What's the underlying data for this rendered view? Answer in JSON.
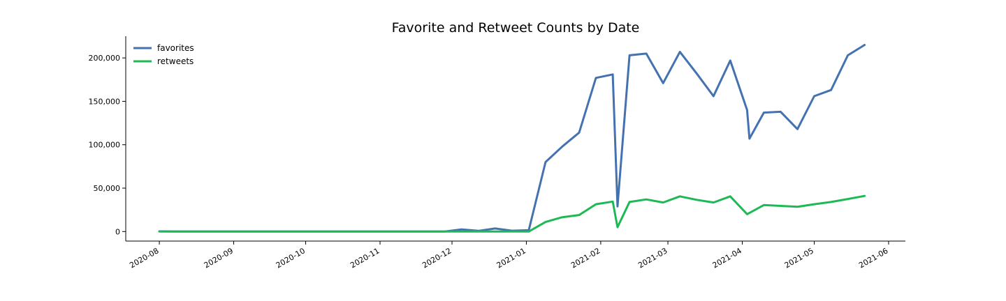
{
  "chart_data": {
    "type": "line",
    "title": "Favorite and Retweet Counts by Date",
    "xlabel": "",
    "ylabel": "",
    "x_ticks": [
      "2020-08",
      "2020-09",
      "2020-10",
      "2020-11",
      "2020-12",
      "2021-01",
      "2021-02",
      "2021-03",
      "2021-04",
      "2021-05",
      "2021-06"
    ],
    "y_ticks": [
      "0",
      "50,000",
      "100,000",
      "150,000",
      "200,000"
    ],
    "xlim": [
      "2020-07-18",
      "2021-06-08"
    ],
    "ylim": [
      -11000,
      225000
    ],
    "grid": false,
    "legend_position": "top-left",
    "series": [
      {
        "name": "favorites",
        "color": "#4472b0",
        "points": [
          [
            "2020-08-01",
            200
          ],
          [
            "2020-08-08",
            100
          ],
          [
            "2020-09-01",
            0
          ],
          [
            "2020-10-01",
            0
          ],
          [
            "2020-11-01",
            0
          ],
          [
            "2020-11-28",
            0
          ],
          [
            "2020-12-05",
            2500
          ],
          [
            "2020-12-12",
            800
          ],
          [
            "2020-12-19",
            3500
          ],
          [
            "2020-12-26",
            1000
          ],
          [
            "2021-01-02",
            1500
          ],
          [
            "2021-01-09",
            80000
          ],
          [
            "2021-01-16",
            98000
          ],
          [
            "2021-01-23",
            114000
          ],
          [
            "2021-01-30",
            177000
          ],
          [
            "2021-02-06",
            181000
          ],
          [
            "2021-02-08",
            29000
          ],
          [
            "2021-02-13",
            203000
          ],
          [
            "2021-02-20",
            205000
          ],
          [
            "2021-02-27",
            171000
          ],
          [
            "2021-03-06",
            207000
          ],
          [
            "2021-03-13",
            182000
          ],
          [
            "2021-03-20",
            156000
          ],
          [
            "2021-03-27",
            197000
          ],
          [
            "2021-04-03",
            140000
          ],
          [
            "2021-04-04",
            107000
          ],
          [
            "2021-04-10",
            137000
          ],
          [
            "2021-04-17",
            138000
          ],
          [
            "2021-04-24",
            118000
          ],
          [
            "2021-05-01",
            156000
          ],
          [
            "2021-05-08",
            163000
          ],
          [
            "2021-05-15",
            203000
          ],
          [
            "2021-05-22",
            215000
          ]
        ]
      },
      {
        "name": "retweets",
        "color": "#1db954",
        "points": [
          [
            "2020-08-01",
            0
          ],
          [
            "2020-09-01",
            0
          ],
          [
            "2020-10-01",
            0
          ],
          [
            "2020-11-01",
            0
          ],
          [
            "2020-11-28",
            0
          ],
          [
            "2020-12-26",
            0
          ],
          [
            "2021-01-02",
            0
          ],
          [
            "2021-01-09",
            11000
          ],
          [
            "2021-01-16",
            16500
          ],
          [
            "2021-01-23",
            19000
          ],
          [
            "2021-01-30",
            31500
          ],
          [
            "2021-02-06",
            34500
          ],
          [
            "2021-02-08",
            5000
          ],
          [
            "2021-02-13",
            34000
          ],
          [
            "2021-02-20",
            37000
          ],
          [
            "2021-02-27",
            33500
          ],
          [
            "2021-03-06",
            40500
          ],
          [
            "2021-03-13",
            36500
          ],
          [
            "2021-03-20",
            33500
          ],
          [
            "2021-03-27",
            40500
          ],
          [
            "2021-04-03",
            20000
          ],
          [
            "2021-04-10",
            30500
          ],
          [
            "2021-04-17",
            29500
          ],
          [
            "2021-04-24",
            28500
          ],
          [
            "2021-05-01",
            31500
          ],
          [
            "2021-05-08",
            34000
          ],
          [
            "2021-05-15",
            37500
          ],
          [
            "2021-05-22",
            41000
          ]
        ]
      }
    ]
  }
}
